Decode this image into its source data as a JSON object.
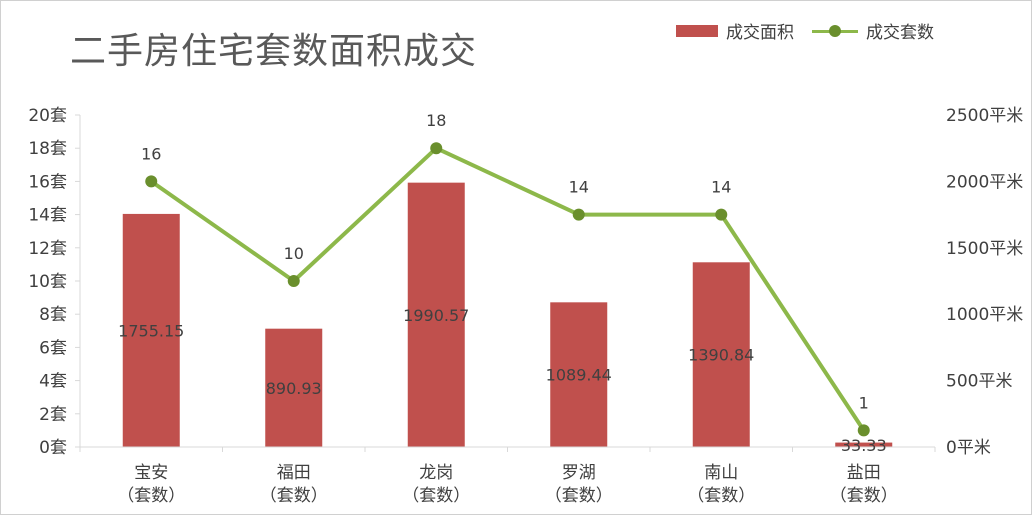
{
  "title": "二手房住宅套数面积成交",
  "legend": {
    "bar": "成交面积",
    "line": "成交套数"
  },
  "colors": {
    "bar": "#c0504d",
    "line": "#8db84a",
    "marker": "#6a8f2d",
    "grid": "#d9d9d9",
    "text": "#404040",
    "title": "#595959"
  },
  "chart_data": {
    "type": "bar+line",
    "title": "二手房住宅套数面积成交",
    "categories": [
      {
        "name": "宝安",
        "sub": "（套数）"
      },
      {
        "name": "福田",
        "sub": "（套数）"
      },
      {
        "name": "龙岗",
        "sub": "（套数）"
      },
      {
        "name": "罗湖",
        "sub": "（套数）"
      },
      {
        "name": "南山",
        "sub": "（套数）"
      },
      {
        "name": "盐田",
        "sub": "（套数）"
      }
    ],
    "series": [
      {
        "name": "成交面积",
        "kind": "bar",
        "axis": "right",
        "values": [
          1755.15,
          890.93,
          1990.57,
          1089.44,
          1390.84,
          33.33
        ],
        "labels": [
          "1755.15",
          "890.93",
          "1990.57",
          "1089.44",
          "1390.84",
          "33.33"
        ]
      },
      {
        "name": "成交套数",
        "kind": "line",
        "axis": "left",
        "values": [
          16,
          10,
          18,
          14,
          14,
          1
        ],
        "labels": [
          "16",
          "10",
          "18",
          "14",
          "14",
          "1"
        ]
      }
    ],
    "left_axis": {
      "ylim": [
        0,
        20
      ],
      "ticks": [
        "0套",
        "2套",
        "4套",
        "6套",
        "8套",
        "10套",
        "12套",
        "14套",
        "16套",
        "18套",
        "20套"
      ]
    },
    "right_axis": {
      "ylim": [
        0,
        2500
      ],
      "ticks": [
        "0平米",
        "500平米",
        "1000平米",
        "1500平米",
        "2000平米",
        "2500平米"
      ]
    },
    "grid": false
  }
}
